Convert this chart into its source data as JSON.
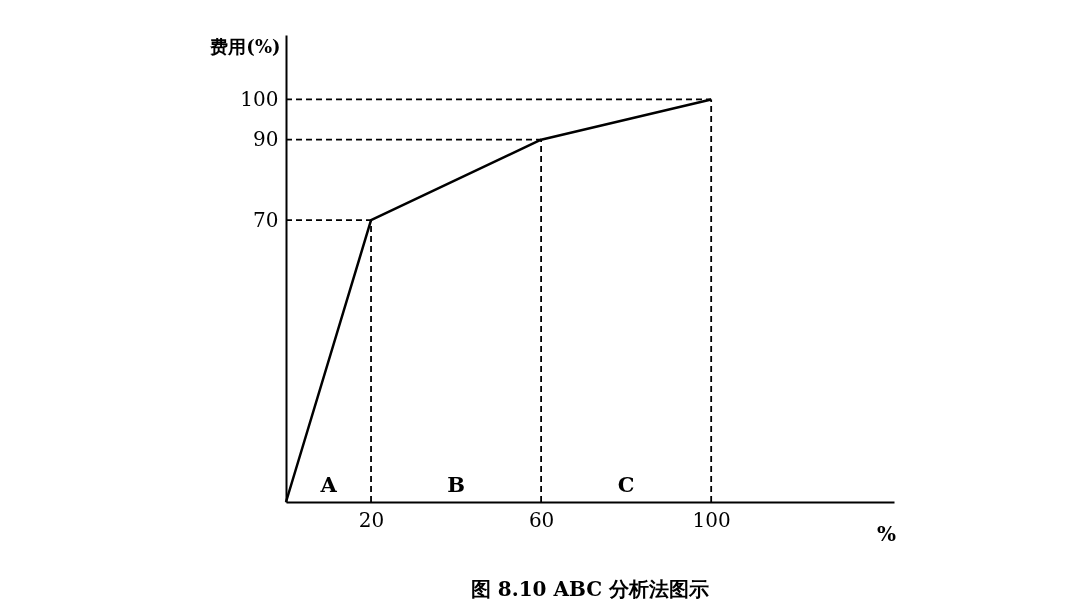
{
  "chart_data": {
    "type": "line",
    "title": "图 8.10 ABC 分析法图示",
    "xlabel": "%",
    "ylabel": "费用(%)",
    "x": [
      0,
      20,
      60,
      100
    ],
    "series": [
      {
        "color": "#000000",
        "values": [
          0,
          70,
          90,
          100
        ]
      }
    ],
    "xlim": [
      0,
      143
    ],
    "ylim": [
      0,
      116
    ],
    "xticks": [
      20,
      60,
      100
    ],
    "yticks": [
      70,
      90,
      100
    ],
    "grid": false,
    "marker": "none",
    "line_style": "solid",
    "ref_lines": [
      {
        "axis": "x",
        "value": 20,
        "line_style": "dashed"
      },
      {
        "axis": "x",
        "value": 60,
        "line_style": "dashed"
      },
      {
        "axis": "x",
        "value": 100,
        "line_style": "dashed"
      },
      {
        "axis": "y",
        "value": 70,
        "line_style": "dashed"
      },
      {
        "axis": "y",
        "value": 90,
        "line_style": "dashed"
      },
      {
        "axis": "y",
        "value": 100,
        "line_style": "dashed"
      }
    ],
    "annotations": [
      "A",
      "B",
      "C"
    ]
  }
}
